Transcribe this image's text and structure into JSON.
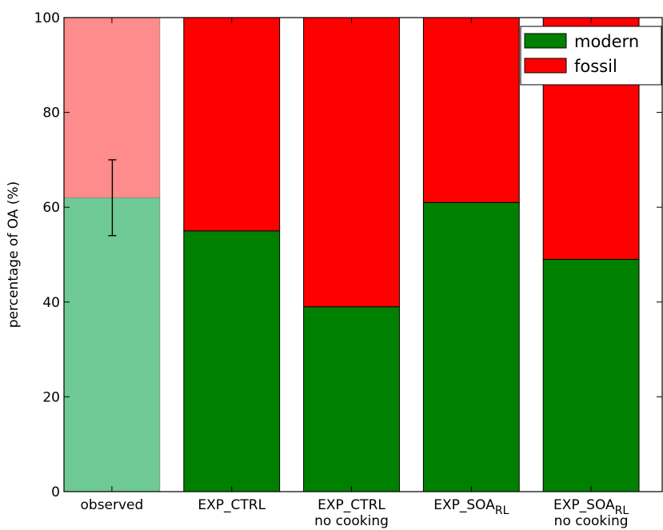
{
  "chart_data": {
    "type": "bar",
    "stacked": true,
    "categories": [
      {
        "label": "observed",
        "sub": "",
        "line2": ""
      },
      {
        "label": "EXP_CTRL",
        "sub": "",
        "line2": ""
      },
      {
        "label": "EXP_CTRL",
        "sub": "",
        "line2": "no cooking"
      },
      {
        "label": "EXP_SOA",
        "sub": "RL",
        "line2": ""
      },
      {
        "label": "EXP_SOA",
        "sub": "RL",
        "line2": "no cooking"
      }
    ],
    "series": [
      {
        "name": "modern",
        "values": [
          62,
          55,
          39,
          61,
          49
        ],
        "color": "#008000",
        "observed_color": "#6ec994"
      },
      {
        "name": "fossil",
        "values": [
          38,
          45,
          61,
          39,
          51
        ],
        "color": "#ff0000",
        "observed_color": "#ff8c8c"
      }
    ],
    "error_bar": {
      "category_index": 0,
      "center": 62,
      "low": 54,
      "high": 70
    },
    "ylabel": "percentage of OA (%)",
    "ylim": [
      0,
      100
    ],
    "yticks": [
      0,
      20,
      40,
      60,
      80,
      100
    ],
    "legend_position": "top-right",
    "grid": false
  }
}
